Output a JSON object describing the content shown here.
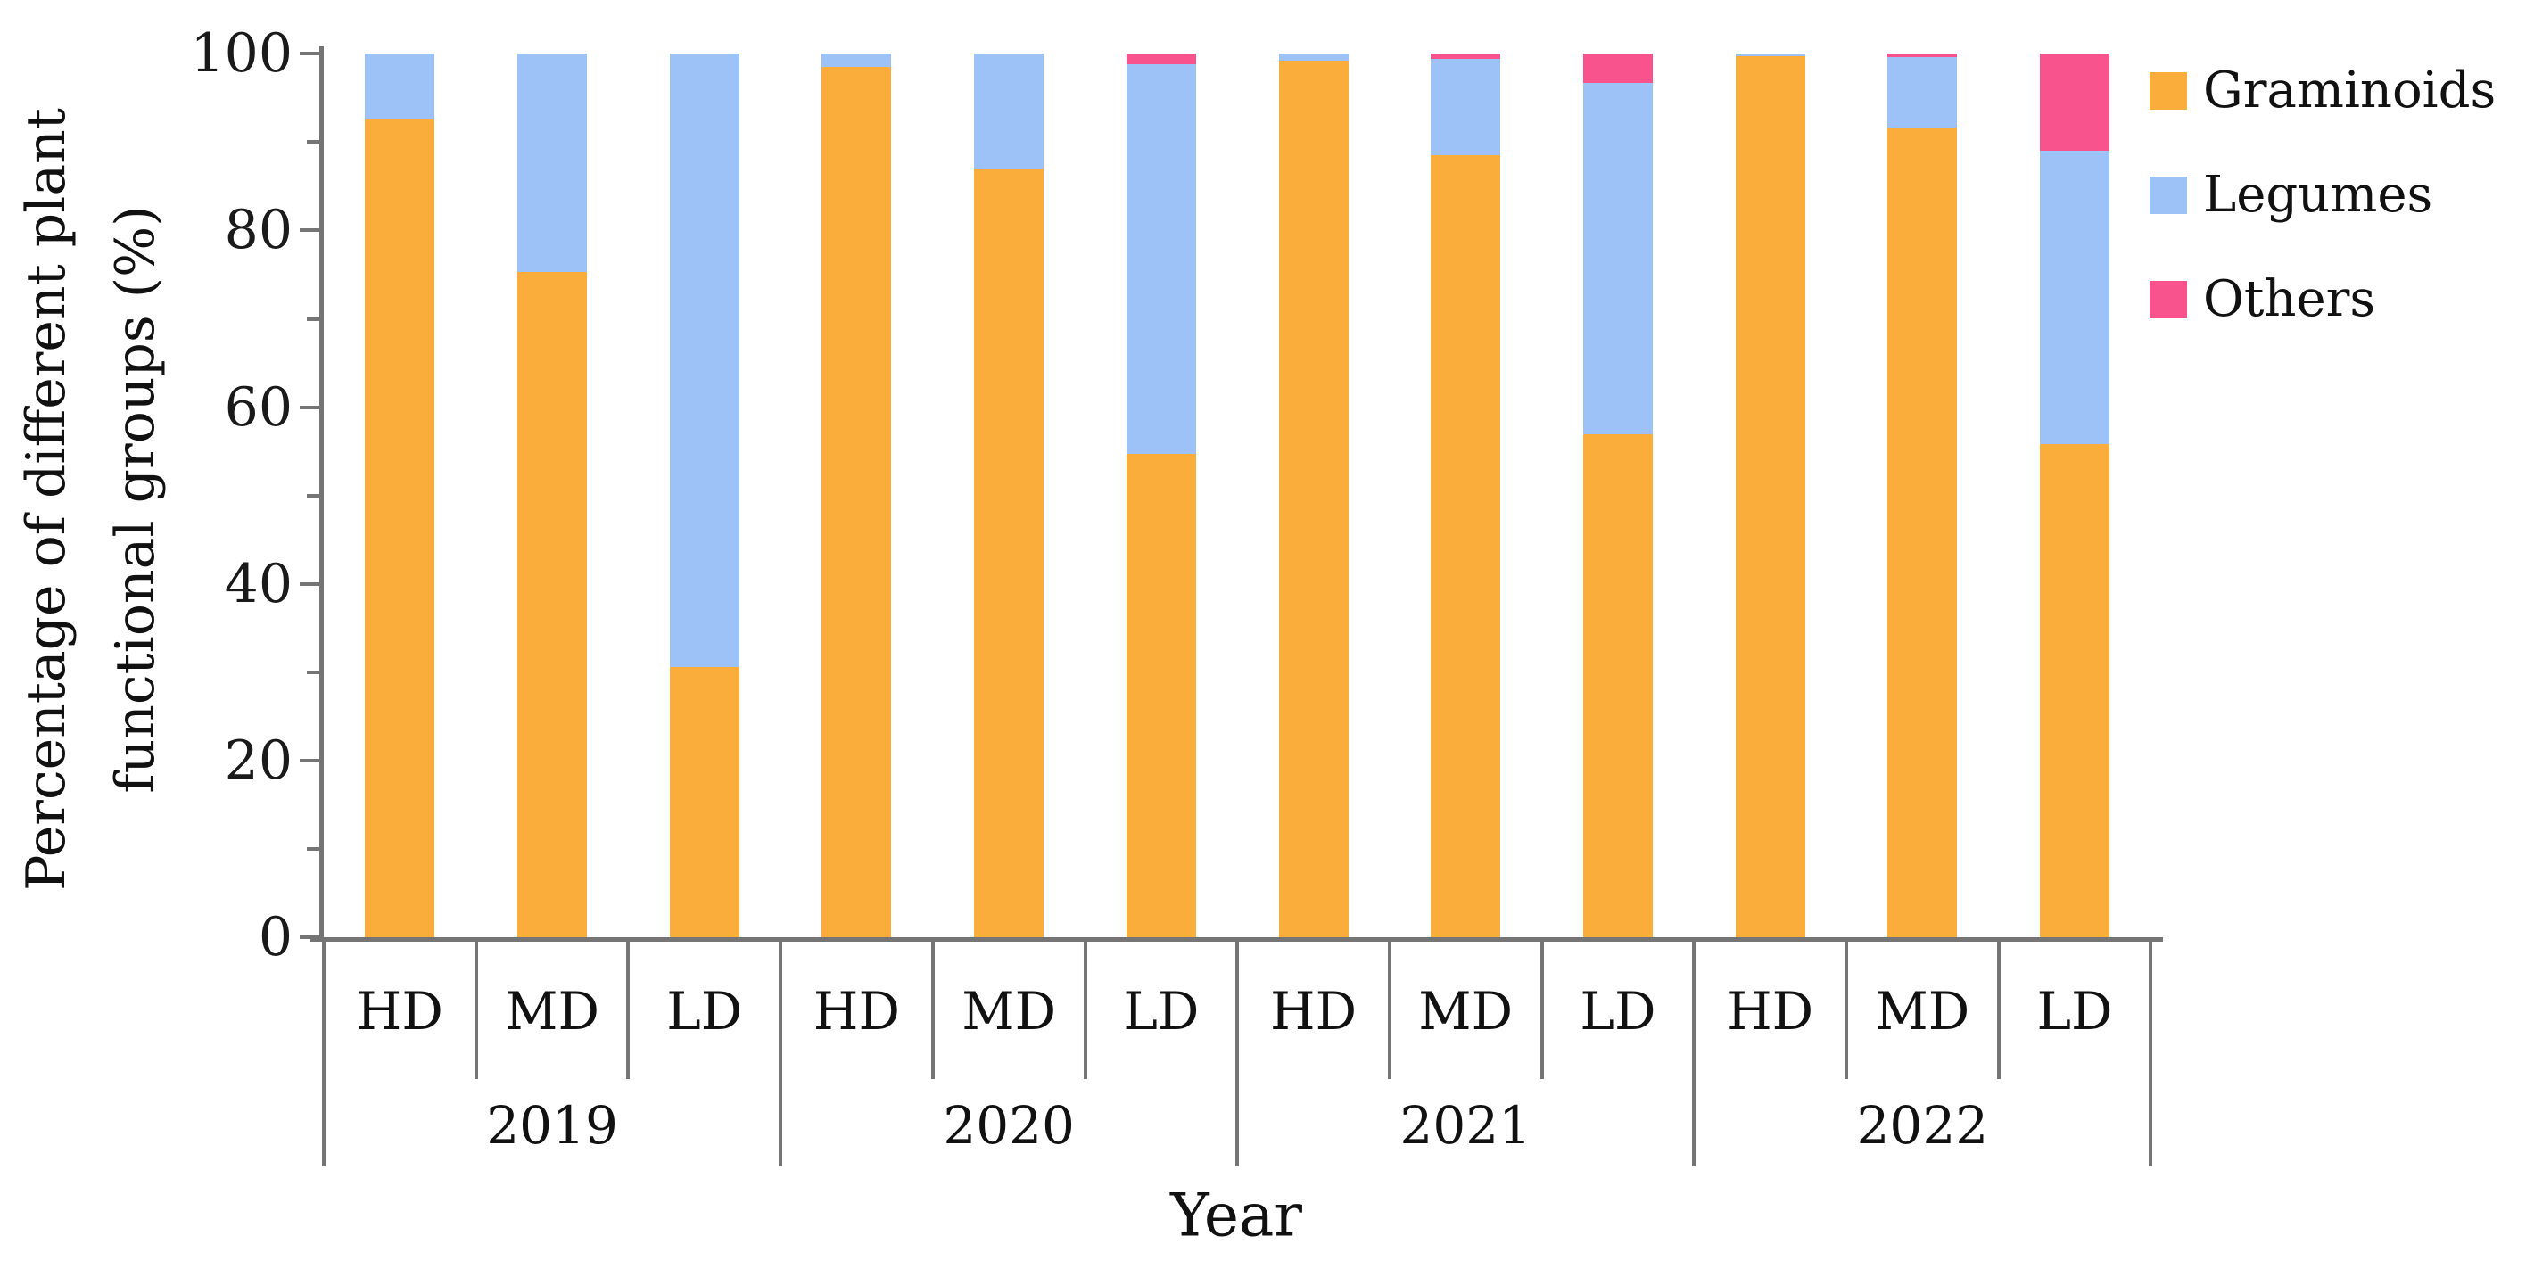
{
  "background": "#ffffff",
  "axis": {
    "line_color": "#757575",
    "text_color": "#1a1a1a"
  },
  "x_axis_title": "Year",
  "y_axis_title_lines": [
    "Percentage of different plant",
    "functional groups (%)"
  ],
  "legend": {
    "position": "right",
    "entries": [
      "Graminoids",
      "Legumes",
      "Others"
    ]
  },
  "chart_data": {
    "type": "bar",
    "stacked": true,
    "grid": false,
    "xlabel": "Year",
    "ylabel": "Percentage of different plant functional groups (%)",
    "ylim": [
      0,
      100
    ],
    "ytick_major": [
      0,
      20,
      40,
      60,
      80,
      100
    ],
    "ytick_minor": [
      10,
      30,
      50,
      70,
      90
    ],
    "categories_level1": [
      "HD",
      "MD",
      "LD"
    ],
    "categories_level2": [
      "2019",
      "2020",
      "2021",
      "2022"
    ],
    "bar_labels": [
      "2019 HD",
      "2019 MD",
      "2019 LD",
      "2020 HD",
      "2020 MD",
      "2020 LD",
      "2021 HD",
      "2021 MD",
      "2021 LD",
      "2022 HD",
      "2022 MD",
      "2022 LD"
    ],
    "series": [
      {
        "name": "Graminoids",
        "color": "#FBAD3B",
        "values": [
          92.7,
          75.3,
          30.6,
          98.5,
          87.0,
          54.7,
          99.2,
          88.5,
          56.9,
          99.7,
          91.7,
          55.8
        ]
      },
      {
        "name": "Legumes",
        "color": "#9CC2F7",
        "values": [
          7.3,
          24.7,
          69.4,
          1.5,
          13.0,
          44.1,
          0.8,
          10.9,
          39.8,
          0.3,
          7.9,
          33.2
        ]
      },
      {
        "name": "Others",
        "color": "#F8538C",
        "values": [
          0,
          0,
          0,
          0,
          0,
          1.2,
          0,
          0.6,
          3.3,
          0,
          0.4,
          11.0
        ]
      }
    ]
  }
}
